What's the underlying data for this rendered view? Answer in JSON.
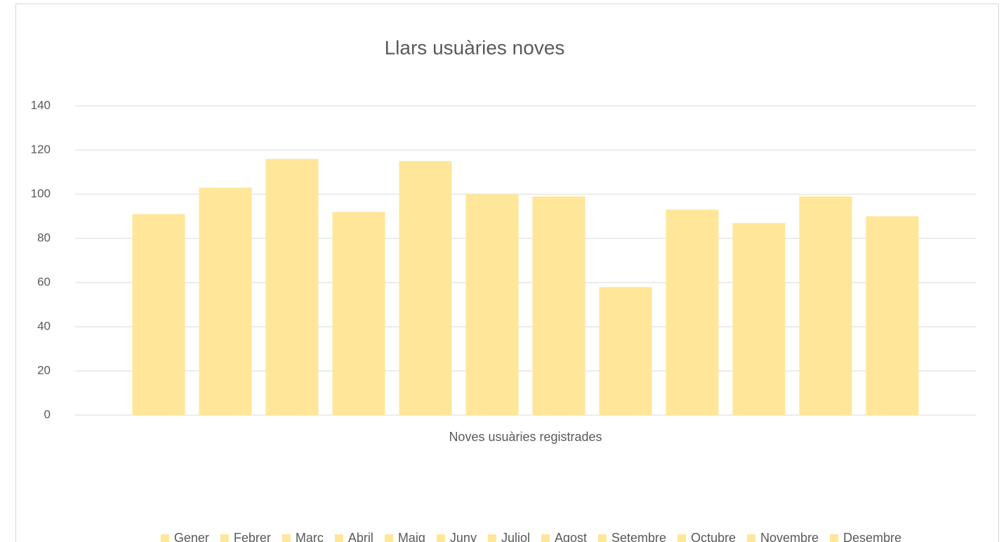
{
  "chart_data": {
    "type": "bar",
    "title": "Llars usuàries noves",
    "categories": [
      "Noves usuàries registrades"
    ],
    "series": [
      {
        "name": "Gener",
        "color": "#ffe699",
        "values": [
          91
        ]
      },
      {
        "name": "Febrer",
        "color": "#ffe699",
        "values": [
          103
        ]
      },
      {
        "name": "Març",
        "color": "#ffe699",
        "values": [
          116
        ]
      },
      {
        "name": "Abril",
        "color": "#ffe699",
        "values": [
          92
        ]
      },
      {
        "name": "Maig",
        "color": "#ffe699",
        "values": [
          115
        ]
      },
      {
        "name": "Juny",
        "color": "#ffe699",
        "values": [
          100
        ]
      },
      {
        "name": "Juliol",
        "color": "#ffe699",
        "values": [
          99
        ]
      },
      {
        "name": "Agost",
        "color": "#ffe699",
        "values": [
          58
        ]
      },
      {
        "name": "Setembre",
        "color": "#ffe699",
        "values": [
          93
        ]
      },
      {
        "name": "Octubre",
        "color": "#ffe699",
        "values": [
          87
        ]
      },
      {
        "name": "Novembre",
        "color": "#ffe699",
        "values": [
          99
        ]
      },
      {
        "name": "Desembre",
        "color": "#ffe699",
        "values": [
          90
        ]
      }
    ],
    "ylim": [
      0,
      140
    ],
    "yticks": [
      0,
      20,
      40,
      60,
      80,
      100,
      120,
      140
    ],
    "grid": true,
    "legend": "bottom"
  }
}
